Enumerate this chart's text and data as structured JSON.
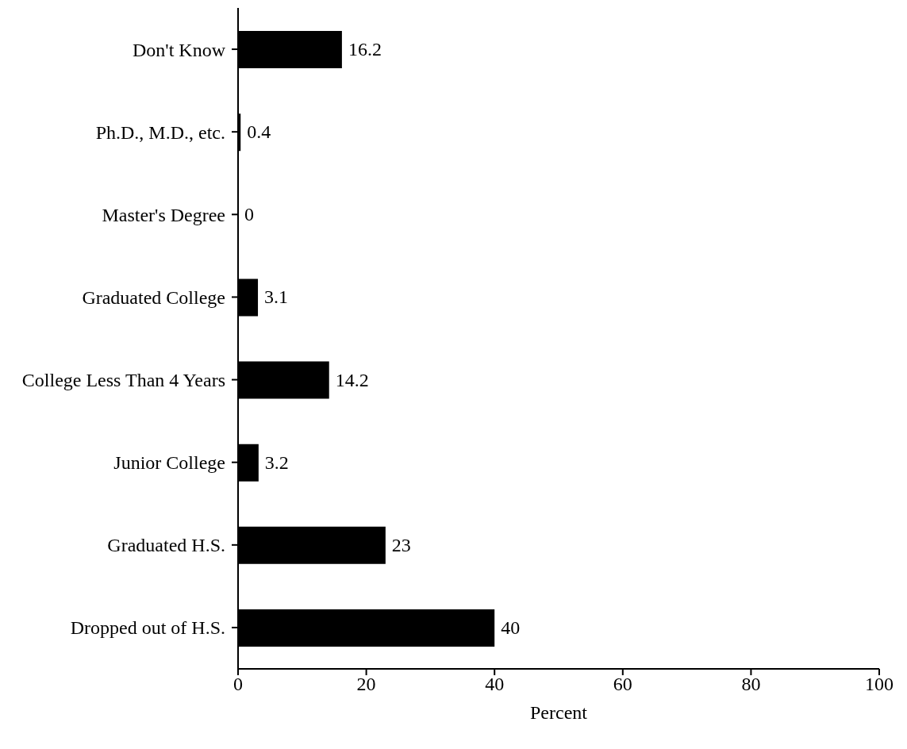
{
  "chart_data": {
    "type": "bar",
    "orientation": "horizontal",
    "xlabel": "Percent",
    "categories": [
      "Don't Know",
      "Ph.D., M.D., etc.",
      "Master's Degree",
      "Graduated College",
      "College Less Than 4 Years",
      "Junior College",
      "Graduated H.S.",
      "Dropped out of H.S."
    ],
    "values": [
      16.2,
      0.4,
      0,
      3.1,
      14.2,
      3.2,
      23,
      40
    ],
    "color": "#000000",
    "xlim": [
      0,
      100
    ],
    "xticks": [
      0,
      20,
      40,
      60,
      80,
      100
    ],
    "grid": false,
    "data_labels": true
  }
}
